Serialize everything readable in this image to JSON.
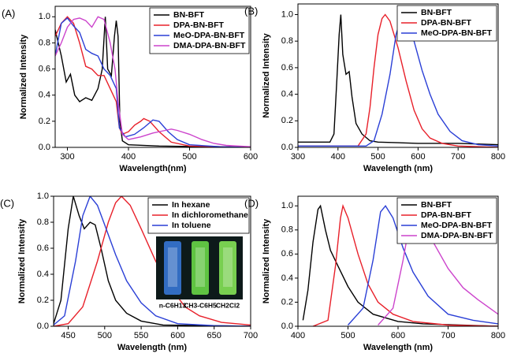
{
  "chart_data": [
    {
      "type": "line",
      "label": "(A)",
      "xlabel": "Wavelength(nm)",
      "ylabel": "Normalized Intensity",
      "xlim": [
        280,
        600
      ],
      "xticks": [
        300,
        400,
        500,
        600
      ],
      "ylim": [
        0,
        1.08
      ],
      "yticks": [
        {
          "value": 0,
          "label": "0.0"
        },
        0.2,
        0.4,
        0.6,
        0.8,
        {
          "value": 1,
          "label": "1.0"
        }
      ],
      "legend": "upper right",
      "series": [
        {
          "name": "BN-BFT",
          "color": "#000000",
          "x": [
            280,
            290,
            298,
            305,
            312,
            320,
            330,
            340,
            350,
            357,
            362,
            366,
            372,
            377,
            380,
            383,
            386,
            390,
            400,
            450,
            600
          ],
          "values": [
            0.9,
            0.7,
            0.5,
            0.56,
            0.4,
            0.35,
            0.38,
            0.36,
            0.45,
            0.6,
            1.0,
            0.6,
            0.55,
            0.85,
            0.97,
            0.85,
            0.2,
            0.05,
            0.02,
            0.01,
            0
          ]
        },
        {
          "name": "DPA-BN-BFT",
          "color": "#e8202a",
          "x": [
            280,
            290,
            300,
            310,
            320,
            330,
            340,
            350,
            360,
            370,
            380,
            385,
            390,
            400,
            410,
            420,
            425,
            435,
            450,
            470,
            500,
            600
          ],
          "values": [
            0.85,
            0.95,
            1.0,
            0.95,
            0.8,
            0.62,
            0.6,
            0.55,
            0.55,
            0.45,
            0.35,
            0.15,
            0.1,
            0.12,
            0.17,
            0.2,
            0.22,
            0.2,
            0.12,
            0.04,
            0.01,
            0
          ]
        },
        {
          "name": "MeO-DPA-BN-BFT",
          "color": "#2a3fd6",
          "x": [
            280,
            290,
            300,
            310,
            320,
            330,
            340,
            350,
            360,
            370,
            380,
            385,
            395,
            410,
            425,
            440,
            450,
            465,
            480,
            500,
            550,
            600
          ],
          "values": [
            0.7,
            0.95,
            0.99,
            0.93,
            0.88,
            0.75,
            0.72,
            0.7,
            0.6,
            0.55,
            0.45,
            0.15,
            0.08,
            0.1,
            0.15,
            0.21,
            0.2,
            0.12,
            0.06,
            0.02,
            0.005,
            0
          ]
        },
        {
          "name": "DMA-DPA-BN-BFT",
          "color": "#cc44cc",
          "x": [
            280,
            290,
            300,
            310,
            320,
            330,
            340,
            350,
            360,
            370,
            378,
            383,
            390,
            400,
            420,
            440,
            460,
            470,
            480,
            500,
            520,
            540,
            560,
            600
          ],
          "values": [
            0.7,
            0.8,
            0.92,
            0.98,
            0.99,
            0.97,
            0.92,
            1.0,
            0.98,
            0.8,
            0.6,
            0.35,
            0.1,
            0.06,
            0.08,
            0.11,
            0.13,
            0.14,
            0.13,
            0.1,
            0.06,
            0.03,
            0.015,
            0.005
          ]
        }
      ]
    },
    {
      "type": "line",
      "label": "(B)",
      "xlabel": "Wavelength (nm)",
      "ylabel": "Normalized Intensity",
      "xlim": [
        300,
        800
      ],
      "xticks": [
        300,
        400,
        500,
        600,
        700,
        800
      ],
      "ylim": [
        0,
        1.08
      ],
      "yticks": [
        {
          "value": 0,
          "label": "0.0"
        },
        0.2,
        0.4,
        0.6,
        0.8,
        {
          "value": 1,
          "label": "1.0"
        }
      ],
      "legend": "upper right",
      "series": [
        {
          "name": "BN-BFT",
          "color": "#000000",
          "x": [
            300,
            350,
            380,
            390,
            397,
            403,
            407,
            412,
            420,
            428,
            435,
            445,
            460,
            480,
            500,
            600,
            700,
            800
          ],
          "values": [
            0.04,
            0.04,
            0.04,
            0.1,
            0.5,
            0.85,
            1.0,
            0.7,
            0.55,
            0.57,
            0.38,
            0.18,
            0.1,
            0.05,
            0.04,
            0.03,
            0.03,
            0.02
          ]
        },
        {
          "name": "DPA-BN-BFT",
          "color": "#e8202a",
          "x": [
            300,
            450,
            470,
            480,
            490,
            500,
            510,
            518,
            530,
            550,
            570,
            590,
            610,
            630,
            660,
            700,
            800
          ],
          "values": [
            0.01,
            0.01,
            0.1,
            0.3,
            0.6,
            0.85,
            0.97,
            1.0,
            0.95,
            0.75,
            0.5,
            0.28,
            0.14,
            0.07,
            0.03,
            0.01,
            0
          ]
        },
        {
          "name": "MeO-DPA-BN-BFT",
          "color": "#2a3fd6",
          "x": [
            300,
            470,
            490,
            510,
            530,
            545,
            560,
            570,
            590,
            610,
            630,
            650,
            680,
            710,
            750,
            800
          ],
          "values": [
            0.01,
            0.01,
            0.05,
            0.25,
            0.55,
            0.85,
            1.0,
            0.98,
            0.8,
            0.58,
            0.4,
            0.25,
            0.12,
            0.05,
            0.02,
            0.01
          ]
        }
      ]
    },
    {
      "type": "line",
      "label": "(C)",
      "xlabel": "Wavelength (nm)",
      "ylabel": "Normalized Intensity",
      "xlim": [
        430,
        700
      ],
      "xticks": [
        450,
        500,
        550,
        600,
        650,
        700
      ],
      "ylim": [
        0,
        1.0
      ],
      "yticks": [
        {
          "value": 0,
          "label": "0.0"
        },
        0.2,
        0.4,
        0.6,
        0.8,
        {
          "value": 1,
          "label": "1.0"
        }
      ],
      "legend": "upper right",
      "annotations": [
        "n-C6H13",
        "CH3-C6H5",
        "CH2Cl2"
      ],
      "series": [
        {
          "name": "In hexane",
          "color": "#000000",
          "x": [
            430,
            440,
            450,
            457,
            465,
            472,
            480,
            487,
            495,
            505,
            515,
            530,
            550,
            580,
            700
          ],
          "values": [
            0.02,
            0.2,
            0.75,
            1.0,
            0.85,
            0.75,
            0.8,
            0.78,
            0.6,
            0.35,
            0.2,
            0.1,
            0.04,
            0.01,
            0
          ]
        },
        {
          "name": "In dichloromethane",
          "color": "#e8202a",
          "x": [
            430,
            450,
            470,
            490,
            505,
            515,
            523,
            535,
            550,
            570,
            590,
            610,
            630,
            660,
            700
          ],
          "values": [
            0,
            0.02,
            0.15,
            0.5,
            0.8,
            0.95,
            1.0,
            0.93,
            0.75,
            0.5,
            0.3,
            0.15,
            0.08,
            0.03,
            0.01
          ]
        },
        {
          "name": "In toluene",
          "color": "#2a3fd6",
          "x": [
            430,
            445,
            460,
            470,
            480,
            490,
            500,
            515,
            530,
            550,
            570,
            600,
            650,
            700
          ],
          "values": [
            0.01,
            0.08,
            0.5,
            0.85,
            1.0,
            0.93,
            0.78,
            0.55,
            0.35,
            0.18,
            0.08,
            0.02,
            0.005,
            0
          ]
        }
      ]
    },
    {
      "type": "line",
      "label": "(D)",
      "xlabel": "Wavelength (nm)",
      "ylabel": "Normalized Intensity",
      "xlim": [
        400,
        800
      ],
      "xticks": [
        400,
        500,
        600,
        700,
        800
      ],
      "ylim": [
        0,
        1.08
      ],
      "yticks": [
        {
          "value": 0,
          "label": "0.0"
        },
        0.2,
        0.4,
        0.6,
        0.8,
        {
          "value": 1,
          "label": "1.0"
        }
      ],
      "legend": "upper right",
      "series": [
        {
          "name": "BN-BFT",
          "color": "#000000",
          "x": [
            410,
            420,
            430,
            440,
            445,
            455,
            465,
            480,
            500,
            520,
            550,
            600,
            650,
            800
          ],
          "values": [
            0.05,
            0.3,
            0.7,
            0.97,
            1.0,
            0.8,
            0.63,
            0.5,
            0.33,
            0.2,
            0.1,
            0.04,
            0.02,
            0
          ]
        },
        {
          "name": "DPA-BN-BFT",
          "color": "#e8202a",
          "x": [
            430,
            460,
            475,
            485,
            490,
            500,
            520,
            540,
            560,
            590,
            630,
            700,
            800
          ],
          "values": [
            0,
            0.05,
            0.5,
            0.9,
            1.0,
            0.9,
            0.6,
            0.35,
            0.2,
            0.1,
            0.04,
            0.01,
            0
          ]
        },
        {
          "name": "MeO-DPA-BN-BFT",
          "color": "#2a3fd6",
          "x": [
            500,
            530,
            550,
            565,
            575,
            590,
            610,
            630,
            660,
            700,
            750,
            800
          ],
          "values": [
            0.01,
            0.15,
            0.55,
            0.95,
            1.0,
            0.9,
            0.65,
            0.45,
            0.25,
            0.1,
            0.05,
            0.02
          ]
        },
        {
          "name": "DMA-DPA-BN-BFT",
          "color": "#cc44cc",
          "x": [
            560,
            590,
            610,
            625,
            635,
            650,
            670,
            700,
            730,
            760,
            790,
            800
          ],
          "values": [
            0.01,
            0.15,
            0.55,
            0.9,
            1.0,
            0.9,
            0.7,
            0.48,
            0.32,
            0.22,
            0.13,
            0.1
          ]
        }
      ]
    }
  ]
}
